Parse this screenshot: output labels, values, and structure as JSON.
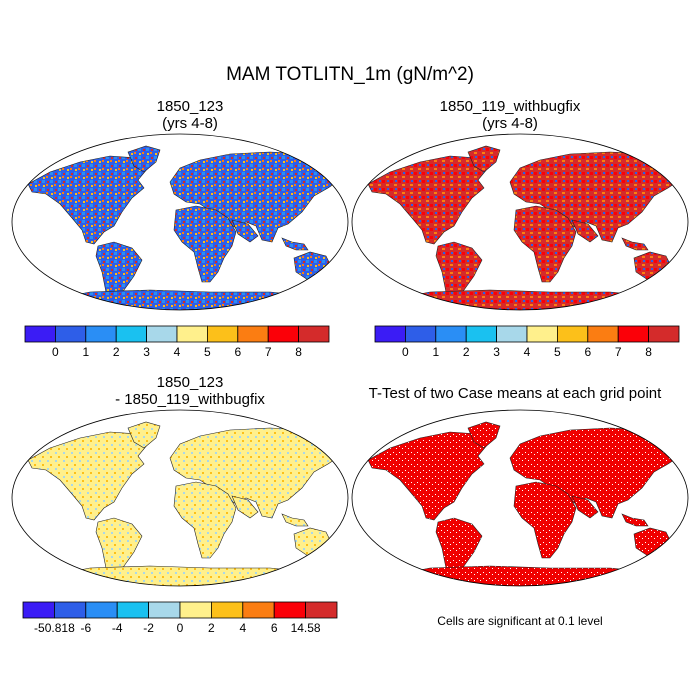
{
  "title": "MAM TOTLITN_1m (gN/m^2)",
  "panels": {
    "top_left": {
      "line1": "1850_123",
      "line2": "(yrs 4-8)"
    },
    "top_right": {
      "line1": "1850_119_withbugfix",
      "line2": "(yrs 4-8)"
    },
    "bottom_left": {
      "line1": "1850_123",
      "line2": "- 1850_119_withbugfix"
    },
    "bottom_right": {
      "line1": "T-Test of two Case means at each grid point"
    }
  },
  "colorbars": {
    "top": {
      "colors": [
        "#3b1cf5",
        "#2e5ee8",
        "#2a8ef5",
        "#1ac1f0",
        "#a8d8ea",
        "#fff08c",
        "#fcc01a",
        "#fb7d12",
        "#fb0008",
        "#d42b2b"
      ],
      "labels": [
        "0",
        "1",
        "2",
        "3",
        "4",
        "5",
        "6",
        "7",
        "8"
      ]
    },
    "diff": {
      "colors": [
        "#3b1cf5",
        "#2e5ee8",
        "#2a8ef5",
        "#1ac1f0",
        "#a8d8ea",
        "#fff08c",
        "#fcc01a",
        "#fb7d12",
        "#fb0008",
        "#d42b2b"
      ],
      "labels": [
        "-50.818",
        "-6",
        "-4",
        "-2",
        "0",
        "2",
        "4",
        "6",
        "14.58"
      ]
    }
  },
  "significance_note": "Cells are significant at 0.1 level",
  "significance_color": "#f00000"
}
